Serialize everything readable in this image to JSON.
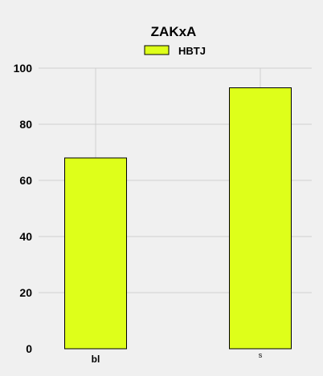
{
  "chart_data": {
    "type": "bar",
    "title": "ZAKxA",
    "xlabel": "",
    "ylabel": "",
    "categories": [
      "bl",
      "s"
    ],
    "series": [
      {
        "name": "HBTJ",
        "values": [
          68,
          93
        ],
        "color": "#deff1a"
      }
    ],
    "ylim": [
      0,
      100
    ],
    "yticks": [
      0,
      20,
      40,
      60,
      80,
      100
    ],
    "grid": true,
    "legend": "top-center",
    "background": "#f0f0f0"
  }
}
